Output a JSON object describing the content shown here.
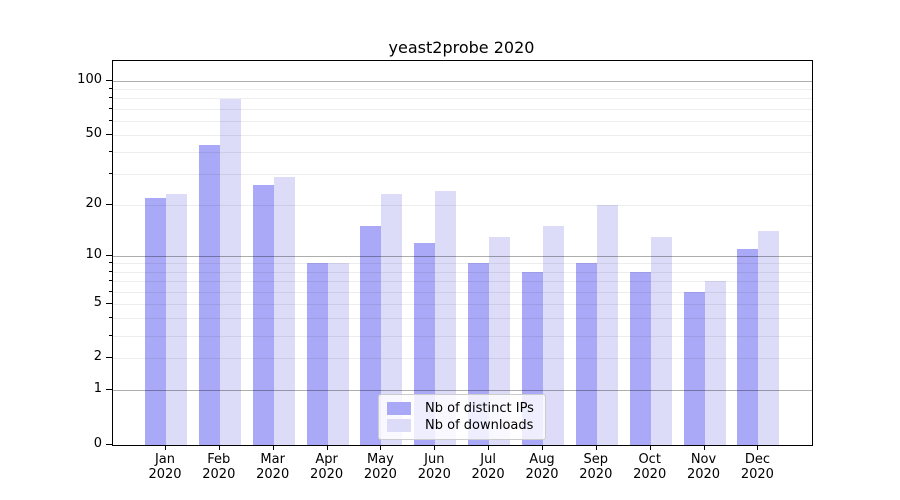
{
  "title": "yeast2probe 2020",
  "legend": {
    "items": [
      {
        "label": "Nb of distinct IPs",
        "color": "#a9a9f7"
      },
      {
        "label": "Nb of downloads",
        "color": "#dcdcf8"
      }
    ]
  },
  "chart_data": {
    "type": "bar",
    "title": "yeast2probe 2020",
    "yscale": "log1p",
    "ylim": [
      0,
      129
    ],
    "grid": true,
    "legend_position": "lower center",
    "categories": [
      {
        "month": "Jan",
        "year": "2020"
      },
      {
        "month": "Feb",
        "year": "2020"
      },
      {
        "month": "Mar",
        "year": "2020"
      },
      {
        "month": "Apr",
        "year": "2020"
      },
      {
        "month": "May",
        "year": "2020"
      },
      {
        "month": "Jun",
        "year": "2020"
      },
      {
        "month": "Jul",
        "year": "2020"
      },
      {
        "month": "Aug",
        "year": "2020"
      },
      {
        "month": "Sep",
        "year": "2020"
      },
      {
        "month": "Oct",
        "year": "2020"
      },
      {
        "month": "Nov",
        "year": "2020"
      },
      {
        "month": "Dec",
        "year": "2020"
      }
    ],
    "series": [
      {
        "name": "Nb of distinct IPs",
        "color": "#a9a9f7",
        "values": [
          22,
          44,
          26,
          9,
          15,
          12,
          9,
          8,
          9,
          8,
          6,
          11
        ]
      },
      {
        "name": "Nb of downloads",
        "color": "#dcdcf8",
        "values": [
          23,
          79,
          29,
          9,
          23,
          24,
          13,
          15,
          20,
          13,
          7,
          14
        ]
      }
    ],
    "yticks_labeled": [
      100,
      50,
      20,
      10,
      5,
      2,
      1,
      0
    ],
    "yticks_minor": [
      3,
      4,
      6,
      7,
      8,
      9,
      30,
      40,
      60,
      70,
      80,
      90
    ],
    "gridlines_light": [
      2,
      3,
      4,
      5,
      6,
      7,
      8,
      9,
      20,
      30,
      40,
      50,
      60,
      70,
      80,
      90
    ],
    "gridlines_dark": [
      1,
      10,
      100
    ]
  },
  "colors": {
    "background": "#ffffff",
    "bar_dark": "#a9a9f7",
    "bar_light": "#dcdcf8",
    "grid_light": "#ececec",
    "grid_dark": "#aeaeae",
    "spine": "#000000",
    "legend_border": "#cccccc"
  }
}
